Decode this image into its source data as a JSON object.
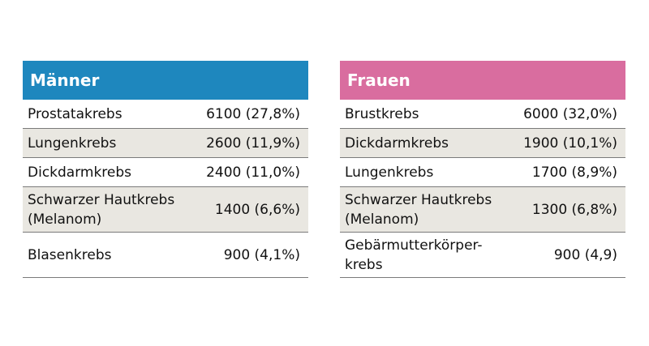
{
  "colors": {
    "men_header": "#1e87be",
    "women_header": "#d96d9f",
    "row_shade": "#e9e7e1"
  },
  "men": {
    "title": "Männer",
    "rows": [
      {
        "name": "Prostatakrebs",
        "value": "6100 (27,8%)"
      },
      {
        "name": "Lungenkrebs",
        "value": "2600 (11,9%)"
      },
      {
        "name": "Dickdarmkrebs",
        "value": "2400 (11,0%)"
      },
      {
        "name": "Schwarzer Hautkrebs\n(Melanom)",
        "value": "1400 (6,6%)"
      },
      {
        "name": "Blasenkrebs",
        "value": "900 (4,1%)"
      }
    ]
  },
  "women": {
    "title": "Frauen",
    "rows": [
      {
        "name": "Brustkrebs",
        "value": "6000 (32,0%)"
      },
      {
        "name": "Dickdarmkrebs",
        "value": "1900 (10,1%)"
      },
      {
        "name": "Lungenkrebs",
        "value": "1700 (8,9%)"
      },
      {
        "name": "Schwarzer Hautkrebs\n(Melanom)",
        "value": "1300 (6,8%)"
      },
      {
        "name": "Gebärmutterkörper-\nkrebs",
        "value": "900 (4,9)"
      }
    ]
  }
}
